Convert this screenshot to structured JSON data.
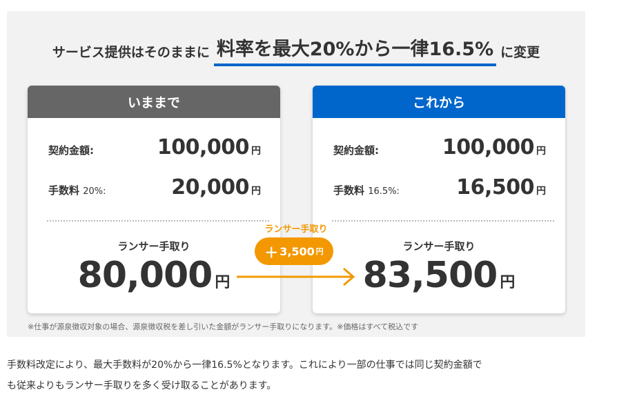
{
  "headline": {
    "prefix": "サービス提供はそのままに",
    "highlight": "料率を最大20%から一律16.5%",
    "suffix": "に変更"
  },
  "before_card": {
    "header": "いままで",
    "contract_label": "契約金額:",
    "contract_amount": "100,000",
    "fee_label": "手数料",
    "fee_pct": "20%:",
    "fee_amount": "20,000",
    "unit": "円",
    "takehome_label": "ランサー手取り",
    "takehome_amount": "80,000"
  },
  "after_card": {
    "header": "これから",
    "contract_label": "契約金額:",
    "contract_amount": "100,000",
    "fee_label": "手数料",
    "fee_pct": "16.5%:",
    "fee_amount": "16,500",
    "unit": "円",
    "takehome_label": "ランサー手取り",
    "takehome_amount": "83,500"
  },
  "difference": {
    "caption": "ランサー手取り",
    "sign": "＋",
    "amount": "3,500",
    "unit": "円"
  },
  "note": "※仕事が源泉徴収対象の場合、源泉徴収税を差し引いた金額がランサー手取りになります。※価格はすべて税込です",
  "description_line1": "手数料改定により、最大手数料が20%から一律16.5%となります。これにより一部の仕事では同じ契約金額で",
  "description_line2": "も従来よりもランサー手取りを多く受け取ることがあります。",
  "colors": {
    "accent_blue": "#0066cc",
    "before_gray": "#666666",
    "orange": "#f39800",
    "panel_bg": "#f2f2f2"
  }
}
